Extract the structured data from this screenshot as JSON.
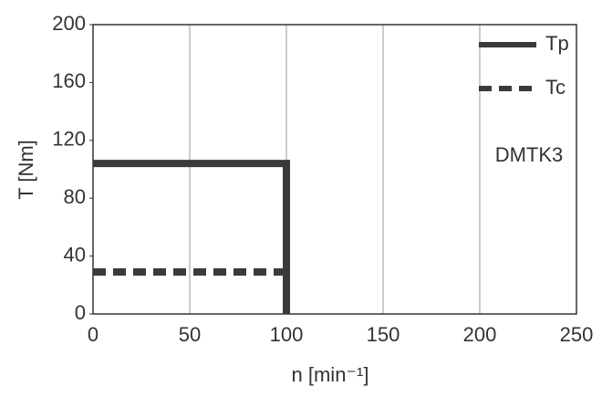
{
  "chart_data": {
    "type": "line",
    "x_label": "n [min⁻¹]",
    "y_label": "T [Nm]",
    "annotation": "DMTK3",
    "xlim": [
      0,
      250
    ],
    "xticks": [
      0,
      50,
      100,
      150,
      200,
      250
    ],
    "ylim": [
      0,
      200
    ],
    "yticks": [
      0,
      40,
      80,
      120,
      160,
      200
    ],
    "grid": "x",
    "legend": "upper right",
    "series": [
      {
        "name": "Tp",
        "color": "#3a3a3a",
        "dash": "solid",
        "x": [
          0,
          100,
          100
        ],
        "values": [
          104,
          104,
          0
        ]
      },
      {
        "name": "Tc",
        "color": "#3a3a3a",
        "dash": "dashed",
        "x": [
          0,
          100
        ],
        "values": [
          29,
          29
        ]
      }
    ]
  }
}
